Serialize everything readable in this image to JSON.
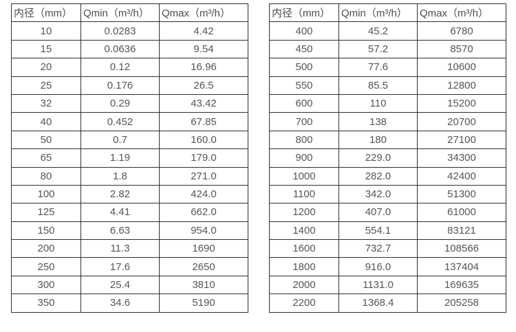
{
  "colors": {
    "background": "#ffffff",
    "border": "#2e2e2e",
    "text": "#4d4d4d"
  },
  "tables": [
    {
      "headers": [
        "内径（mm）",
        "Qmin（m³/h）",
        "Qmax（m³/h）"
      ],
      "rows": [
        [
          "10",
          "0.0283",
          "4.42"
        ],
        [
          "15",
          "0.0636",
          "9.54"
        ],
        [
          "20",
          "0.12",
          "16.96"
        ],
        [
          "25",
          "0.176",
          "26.5"
        ],
        [
          "32",
          "0.29",
          "43.42"
        ],
        [
          "40",
          "0.452",
          "67.85"
        ],
        [
          "50",
          "0.7",
          "160.0"
        ],
        [
          "65",
          "1.19",
          "179.0"
        ],
        [
          "80",
          "1.8",
          "271.0"
        ],
        [
          "100",
          "2.82",
          "424.0"
        ],
        [
          "125",
          "4.41",
          "662.0"
        ],
        [
          "150",
          "6.63",
          "954.0"
        ],
        [
          "200",
          "11.3",
          "1690"
        ],
        [
          "250",
          "17.6",
          "2650"
        ],
        [
          "300",
          "25.4",
          "3810"
        ],
        [
          "350",
          "34.6",
          "5190"
        ]
      ]
    },
    {
      "headers": [
        "内径（mm）",
        "Qmin（m³/h）",
        "Qmax（m³/h）"
      ],
      "rows": [
        [
          "400",
          "45.2",
          "6780"
        ],
        [
          "450",
          "57.2",
          "8570"
        ],
        [
          "500",
          "77.6",
          "10600"
        ],
        [
          "550",
          "85.5",
          "12800"
        ],
        [
          "600",
          "110",
          "15200"
        ],
        [
          "700",
          "138",
          "20700"
        ],
        [
          "800",
          "180",
          "27100"
        ],
        [
          "900",
          "229.0",
          "34300"
        ],
        [
          "1000",
          "282.0",
          "42400"
        ],
        [
          "1100",
          "342.0",
          "51300"
        ],
        [
          "1200",
          "407.0",
          "61000"
        ],
        [
          "1400",
          "554.1",
          "83121"
        ],
        [
          "1600",
          "732.7",
          "108566"
        ],
        [
          "1800",
          "916.0",
          "137404"
        ],
        [
          "2000",
          "1131.0",
          "169635"
        ],
        [
          "2200",
          "1368.4",
          "205258"
        ]
      ]
    }
  ]
}
